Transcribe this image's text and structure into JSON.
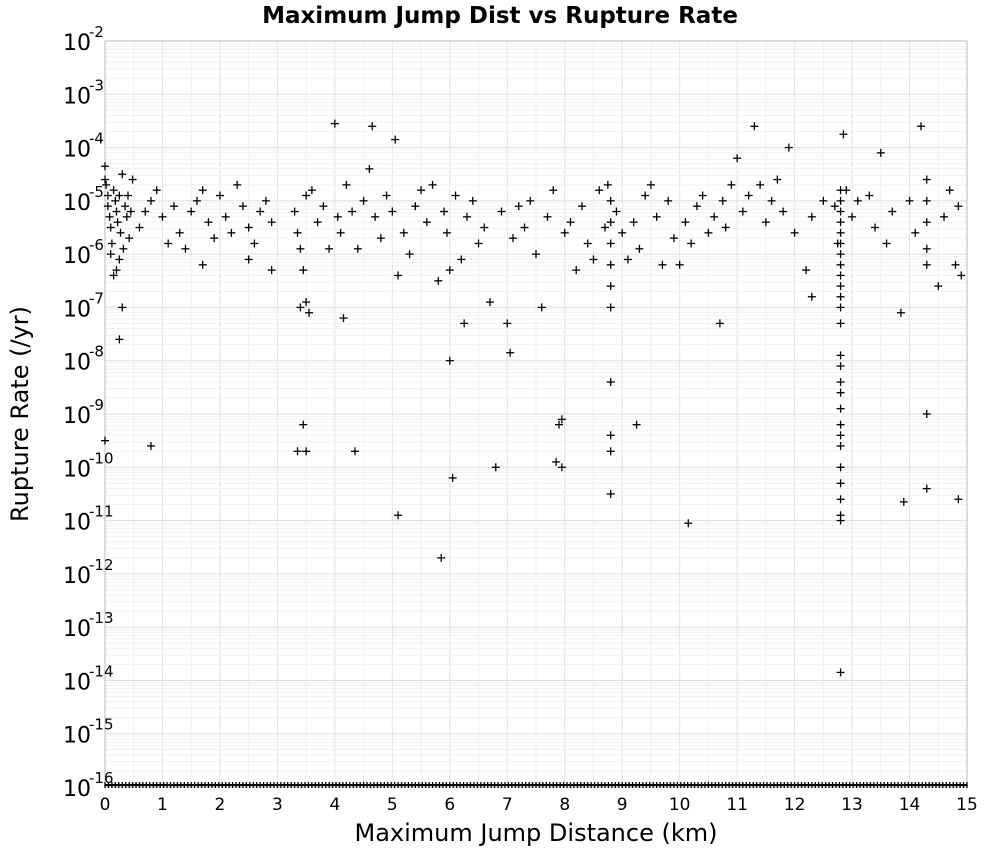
{
  "chart_data": {
    "type": "scatter",
    "title": "Maximum Jump Dist vs Rupture Rate",
    "xlabel": "Maximum Jump Distance (km)",
    "ylabel": "Rupture Rate (/yr)",
    "xlim": [
      0,
      15
    ],
    "ylim_exponent": [
      -16,
      -2
    ],
    "yscale": "log",
    "grid": true,
    "marker": "plus",
    "x_ticks": [
      "0",
      "1",
      "2",
      "3",
      "4",
      "5",
      "6",
      "7",
      "8",
      "9",
      "10",
      "11",
      "12",
      "13",
      "14",
      "15"
    ],
    "y_ticks": [
      {
        "base": "10",
        "exp": "-2"
      },
      {
        "base": "10",
        "exp": "-3"
      },
      {
        "base": "10",
        "exp": "-4"
      },
      {
        "base": "10",
        "exp": "-5"
      },
      {
        "base": "10",
        "exp": "-6"
      },
      {
        "base": "10",
        "exp": "-7"
      },
      {
        "base": "10",
        "exp": "-8"
      },
      {
        "base": "10",
        "exp": "-9"
      },
      {
        "base": "10",
        "exp": "-10"
      },
      {
        "base": "10",
        "exp": "-11"
      },
      {
        "base": "10",
        "exp": "-12"
      },
      {
        "base": "10",
        "exp": "-13"
      },
      {
        "base": "10",
        "exp": "-14"
      },
      {
        "base": "10",
        "exp": "-15"
      },
      {
        "base": "10",
        "exp": "-16"
      }
    ],
    "points_log10": [
      [
        0.0,
        -4.35
      ],
      [
        0.0,
        -4.6
      ],
      [
        0.02,
        -4.7
      ],
      [
        0.05,
        -4.9
      ],
      [
        0.05,
        -5.1
      ],
      [
        0.08,
        -5.3
      ],
      [
        0.1,
        -5.5
      ],
      [
        0.12,
        -5.8
      ],
      [
        0.15,
        -4.8
      ],
      [
        0.18,
        -5.0
      ],
      [
        0.2,
        -5.2
      ],
      [
        0.22,
        -5.4
      ],
      [
        0.25,
        -4.9
      ],
      [
        0.27,
        -5.6
      ],
      [
        0.3,
        -4.5
      ],
      [
        0.32,
        -5.9
      ],
      [
        0.35,
        -5.1
      ],
      [
        0.38,
        -5.3
      ],
      [
        0.4,
        -4.9
      ],
      [
        0.42,
        -5.7
      ],
      [
        0.45,
        -5.2
      ],
      [
        0.48,
        -4.6
      ],
      [
        0.2,
        -6.3
      ],
      [
        0.15,
        -6.4
      ],
      [
        0.25,
        -6.1
      ],
      [
        0.1,
        -6.0
      ],
      [
        0.3,
        -7.0
      ],
      [
        0.25,
        -7.6
      ],
      [
        0.0,
        -9.5
      ],
      [
        0.6,
        -5.5
      ],
      [
        0.7,
        -5.2
      ],
      [
        0.8,
        -5.0
      ],
      [
        0.9,
        -4.8
      ],
      [
        1.0,
        -5.3
      ],
      [
        1.1,
        -5.8
      ],
      [
        1.2,
        -5.1
      ],
      [
        1.3,
        -5.6
      ],
      [
        1.4,
        -5.9
      ],
      [
        1.5,
        -5.2
      ],
      [
        1.6,
        -5.0
      ],
      [
        1.7,
        -4.8
      ],
      [
        1.8,
        -5.4
      ],
      [
        1.9,
        -5.7
      ],
      [
        2.0,
        -4.9
      ],
      [
        2.1,
        -5.3
      ],
      [
        2.2,
        -5.6
      ],
      [
        2.3,
        -4.7
      ],
      [
        2.4,
        -5.1
      ],
      [
        2.5,
        -5.5
      ],
      [
        2.6,
        -5.8
      ],
      [
        2.7,
        -5.2
      ],
      [
        2.8,
        -5.0
      ],
      [
        2.9,
        -5.4
      ],
      [
        1.7,
        -6.2
      ],
      [
        2.5,
        -6.1
      ],
      [
        2.9,
        -6.3
      ],
      [
        0.8,
        -9.6
      ],
      [
        3.3,
        -5.2
      ],
      [
        3.35,
        -5.6
      ],
      [
        3.4,
        -5.9
      ],
      [
        3.45,
        -6.3
      ],
      [
        3.5,
        -4.9
      ],
      [
        3.5,
        -6.9
      ],
      [
        3.55,
        -7.1
      ],
      [
        3.4,
        -7.0
      ],
      [
        3.45,
        -9.2
      ],
      [
        3.35,
        -9.7
      ],
      [
        3.5,
        -9.7
      ],
      [
        3.6,
        -4.8
      ],
      [
        3.7,
        -5.4
      ],
      [
        3.8,
        -5.1
      ],
      [
        3.9,
        -5.9
      ],
      [
        4.0,
        -3.55
      ],
      [
        4.05,
        -5.3
      ],
      [
        4.1,
        -5.6
      ],
      [
        4.15,
        -7.2
      ],
      [
        4.2,
        -4.7
      ],
      [
        4.3,
        -5.2
      ],
      [
        4.35,
        -9.7
      ],
      [
        4.4,
        -5.9
      ],
      [
        4.5,
        -5.0
      ],
      [
        4.6,
        -4.4
      ],
      [
        4.65,
        -3.6
      ],
      [
        4.7,
        -5.3
      ],
      [
        4.8,
        -5.7
      ],
      [
        4.9,
        -4.9
      ],
      [
        5.0,
        -5.2
      ],
      [
        5.05,
        -3.85
      ],
      [
        5.1,
        -6.4
      ],
      [
        5.1,
        -10.9
      ],
      [
        5.2,
        -5.6
      ],
      [
        5.3,
        -6.0
      ],
      [
        5.4,
        -5.1
      ],
      [
        5.5,
        -4.8
      ],
      [
        5.6,
        -5.4
      ],
      [
        5.7,
        -4.7
      ],
      [
        5.8,
        -6.5
      ],
      [
        5.85,
        -11.7
      ],
      [
        5.9,
        -5.2
      ],
      [
        5.95,
        -5.6
      ],
      [
        6.0,
        -8.0
      ],
      [
        6.0,
        -6.3
      ],
      [
        6.05,
        -10.2
      ],
      [
        6.1,
        -4.9
      ],
      [
        6.2,
        -6.1
      ],
      [
        6.25,
        -7.3
      ],
      [
        6.3,
        -5.3
      ],
      [
        6.4,
        -5.0
      ],
      [
        6.5,
        -5.8
      ],
      [
        6.6,
        -5.5
      ],
      [
        6.7,
        -6.9
      ],
      [
        6.8,
        -10.0
      ],
      [
        6.9,
        -5.2
      ],
      [
        7.0,
        -7.3
      ],
      [
        7.05,
        -7.85
      ],
      [
        7.1,
        -5.7
      ],
      [
        7.2,
        -5.1
      ],
      [
        7.3,
        -5.5
      ],
      [
        7.4,
        -5.0
      ],
      [
        7.5,
        -6.0
      ],
      [
        7.6,
        -7.0
      ],
      [
        7.7,
        -5.3
      ],
      [
        7.8,
        -4.8
      ],
      [
        7.85,
        -9.9
      ],
      [
        7.9,
        -9.2
      ],
      [
        7.95,
        -9.1
      ],
      [
        7.95,
        -10.0
      ],
      [
        8.0,
        -5.6
      ],
      [
        8.1,
        -5.4
      ],
      [
        8.2,
        -6.3
      ],
      [
        8.3,
        -5.1
      ],
      [
        8.4,
        -5.8
      ],
      [
        8.5,
        -6.1
      ],
      [
        8.6,
        -4.8
      ],
      [
        8.7,
        -5.5
      ],
      [
        8.75,
        -4.7
      ],
      [
        8.8,
        -5.0
      ],
      [
        8.8,
        -5.4
      ],
      [
        8.8,
        -5.8
      ],
      [
        8.8,
        -6.2
      ],
      [
        8.8,
        -6.6
      ],
      [
        8.8,
        -7.0
      ],
      [
        8.8,
        -8.4
      ],
      [
        8.8,
        -9.4
      ],
      [
        8.8,
        -9.7
      ],
      [
        8.8,
        -10.5
      ],
      [
        8.9,
        -5.2
      ],
      [
        9.0,
        -5.6
      ],
      [
        9.1,
        -6.1
      ],
      [
        9.2,
        -5.4
      ],
      [
        9.25,
        -9.2
      ],
      [
        9.3,
        -5.9
      ],
      [
        9.4,
        -4.9
      ],
      [
        9.5,
        -4.7
      ],
      [
        9.6,
        -5.3
      ],
      [
        9.7,
        -6.2
      ],
      [
        9.8,
        -5.0
      ],
      [
        9.9,
        -5.7
      ],
      [
        10.0,
        -6.2
      ],
      [
        10.1,
        -5.4
      ],
      [
        10.15,
        -11.05
      ],
      [
        10.2,
        -5.8
      ],
      [
        10.3,
        -5.1
      ],
      [
        10.4,
        -4.9
      ],
      [
        10.5,
        -5.6
      ],
      [
        10.6,
        -5.3
      ],
      [
        10.7,
        -7.3
      ],
      [
        10.75,
        -5.0
      ],
      [
        10.8,
        -5.5
      ],
      [
        10.9,
        -4.7
      ],
      [
        11.0,
        -4.2
      ],
      [
        11.1,
        -5.2
      ],
      [
        11.2,
        -4.9
      ],
      [
        11.3,
        -3.6
      ],
      [
        11.4,
        -4.7
      ],
      [
        11.5,
        -5.4
      ],
      [
        11.6,
        -5.0
      ],
      [
        11.7,
        -4.6
      ],
      [
        11.8,
        -5.2
      ],
      [
        11.9,
        -4.0
      ],
      [
        12.0,
        -5.6
      ],
      [
        12.2,
        -6.3
      ],
      [
        12.3,
        -6.8
      ],
      [
        12.3,
        -5.3
      ],
      [
        12.5,
        -5.0
      ],
      [
        12.7,
        -5.1
      ],
      [
        12.75,
        -5.8
      ],
      [
        12.8,
        -4.8
      ],
      [
        12.8,
        -5.0
      ],
      [
        12.8,
        -5.2
      ],
      [
        12.8,
        -5.4
      ],
      [
        12.8,
        -5.6
      ],
      [
        12.8,
        -5.8
      ],
      [
        12.8,
        -6.0
      ],
      [
        12.8,
        -6.2
      ],
      [
        12.8,
        -6.4
      ],
      [
        12.8,
        -6.6
      ],
      [
        12.8,
        -6.8
      ],
      [
        12.8,
        -7.0
      ],
      [
        12.8,
        -7.3
      ],
      [
        12.8,
        -7.9
      ],
      [
        12.8,
        -8.1
      ],
      [
        12.8,
        -8.4
      ],
      [
        12.8,
        -8.6
      ],
      [
        12.8,
        -8.9
      ],
      [
        12.8,
        -9.2
      ],
      [
        12.8,
        -9.4
      ],
      [
        12.8,
        -9.6
      ],
      [
        12.8,
        -10.0
      ],
      [
        12.8,
        -10.3
      ],
      [
        12.8,
        -10.6
      ],
      [
        12.8,
        -10.9
      ],
      [
        12.8,
        -11.0
      ],
      [
        12.8,
        -13.85
      ],
      [
        12.85,
        -3.75
      ],
      [
        12.9,
        -4.8
      ],
      [
        13.0,
        -5.3
      ],
      [
        13.1,
        -5.0
      ],
      [
        13.3,
        -4.9
      ],
      [
        13.4,
        -5.5
      ],
      [
        13.5,
        -4.1
      ],
      [
        13.6,
        -5.8
      ],
      [
        13.7,
        -5.2
      ],
      [
        13.85,
        -7.1
      ],
      [
        13.9,
        -10.65
      ],
      [
        14.0,
        -5.0
      ],
      [
        14.1,
        -5.6
      ],
      [
        14.2,
        -3.6
      ],
      [
        14.3,
        -4.6
      ],
      [
        14.3,
        -5.0
      ],
      [
        14.3,
        -5.4
      ],
      [
        14.3,
        -5.9
      ],
      [
        14.3,
        -6.2
      ],
      [
        14.3,
        -9.0
      ],
      [
        14.3,
        -10.4
      ],
      [
        14.5,
        -6.6
      ],
      [
        14.6,
        -5.3
      ],
      [
        14.7,
        -4.8
      ],
      [
        14.8,
        -6.2
      ],
      [
        14.85,
        -5.1
      ],
      [
        14.85,
        -10.6
      ],
      [
        14.9,
        -6.4
      ]
    ]
  }
}
